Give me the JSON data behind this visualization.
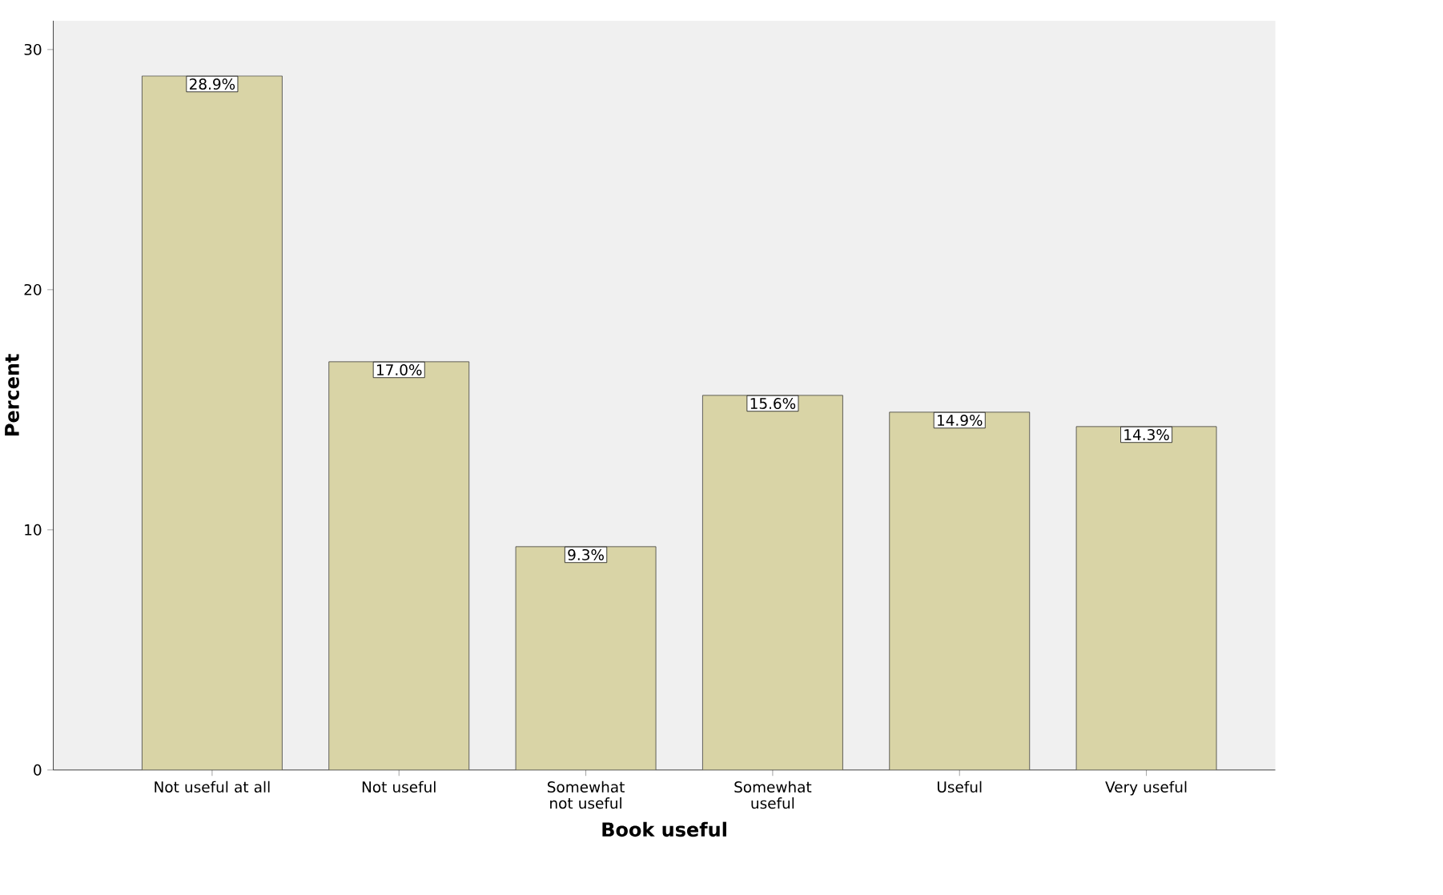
{
  "chart_data": {
    "type": "bar",
    "xlabel": "Book useful",
    "ylabel": "Percent",
    "categories": [
      "Not useful at all",
      "Not useful",
      "Somewhat not useful",
      "Somewhat useful",
      "Useful",
      "Very useful"
    ],
    "values": [
      28.9,
      17.0,
      9.3,
      15.6,
      14.9,
      14.3
    ],
    "value_labels": [
      "28.9%",
      "17.0%",
      "9.3%",
      "15.6%",
      "14.9%",
      "14.3%"
    ],
    "color": "#d9d4a6",
    "ylim": [
      0,
      31.2
    ],
    "yticks": [
      0,
      10,
      20,
      30
    ],
    "grid": false
  }
}
